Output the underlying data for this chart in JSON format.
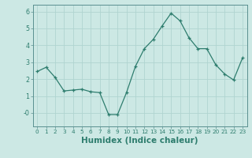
{
  "x": [
    0,
    1,
    2,
    3,
    4,
    5,
    6,
    7,
    8,
    9,
    10,
    11,
    12,
    13,
    14,
    15,
    16,
    17,
    18,
    19,
    20,
    21,
    22,
    23
  ],
  "y": [
    2.45,
    2.7,
    2.1,
    1.3,
    1.35,
    1.4,
    1.25,
    1.2,
    -0.1,
    -0.1,
    1.2,
    2.75,
    3.8,
    4.35,
    5.15,
    5.9,
    5.45,
    4.45,
    3.8,
    3.8,
    2.85,
    2.3,
    1.95,
    3.25
  ],
  "line_color": "#2e7d6e",
  "marker": "+",
  "marker_size": 3,
  "bg_color": "#cce8e4",
  "grid_color": "#b0d4d0",
  "xlabel": "Humidex (Indice chaleur)",
  "ylim": [
    -0.8,
    6.4
  ],
  "xlim": [
    -0.5,
    23.5
  ],
  "yticks": [
    0,
    1,
    2,
    3,
    4,
    5,
    6
  ],
  "ytick_labels": [
    "-0",
    "1",
    "2",
    "3",
    "4",
    "5",
    "6"
  ],
  "xticks": [
    0,
    1,
    2,
    3,
    4,
    5,
    6,
    7,
    8,
    9,
    10,
    11,
    12,
    13,
    14,
    15,
    16,
    17,
    18,
    19,
    20,
    21,
    22,
    23
  ],
  "spine_color": "#5a9090",
  "tick_color": "#2e7d6e",
  "xlabel_fontsize": 7.5,
  "xlabel_fontweight": "bold",
  "xtick_fontsize": 5.2,
  "ytick_fontsize": 5.8
}
